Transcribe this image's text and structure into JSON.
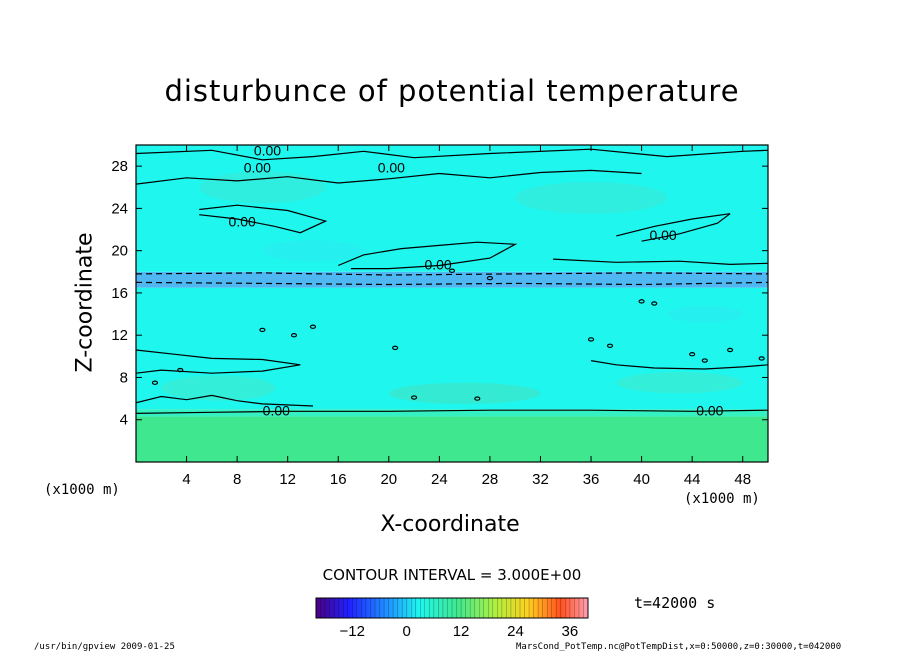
{
  "chart_data": {
    "type": "heatmap",
    "title": "disturbunce of potential temperature",
    "xlabel": "X-coordinate",
    "ylabel": "Z-coordinate",
    "x_unit": "(x1000 m)",
    "x_ticks": [
      4,
      8,
      12,
      16,
      20,
      24,
      28,
      32,
      36,
      40,
      44,
      48
    ],
    "y_ticks": [
      4,
      8,
      12,
      16,
      20,
      24,
      28
    ],
    "xlim": [
      0,
      50
    ],
    "ylim": [
      0,
      30
    ],
    "grid": false,
    "contour_interval_label": "CONTOUR INTERVAL = 3.000E+00",
    "contour_labels": [
      "0.00",
      "0.00",
      "0.00",
      "0.00",
      "0.00",
      "0.00",
      "0.00",
      "0.00"
    ],
    "time_label": "t=42000 s",
    "colorbar": {
      "ticks": [
        -12,
        0,
        12,
        24,
        36
      ],
      "range": [
        -20,
        40
      ]
    },
    "bands": [
      {
        "z": [
          0,
          4.3
        ],
        "level": "low-positive",
        "color": "#3fe88f"
      },
      {
        "z": [
          4.3,
          5.0
        ],
        "level": "slightly-positive",
        "color": "#35f0c0"
      },
      {
        "z": [
          5.0,
          16.5
        ],
        "level": "near-zero",
        "color": "#1ff6ee"
      },
      {
        "z": [
          16.5,
          18.0
        ],
        "level": "slightly-negative",
        "color": "#4fb8f2"
      },
      {
        "z": [
          18.0,
          30
        ],
        "level": "near-zero",
        "color": "#1ff6ee"
      }
    ]
  },
  "footer": {
    "left": "/usr/bin/gpview   2009-01-25",
    "right": "MarsCond_PotTemp.nc@PotTempDist,x=0:50000,z=0:30000,t=042000"
  },
  "colors": {
    "background": "#ffffff",
    "field_base": "#1ff6ee",
    "field_low": "#3fe88f",
    "field_negative": "#4fb8f2",
    "contour_line": "#000000"
  }
}
